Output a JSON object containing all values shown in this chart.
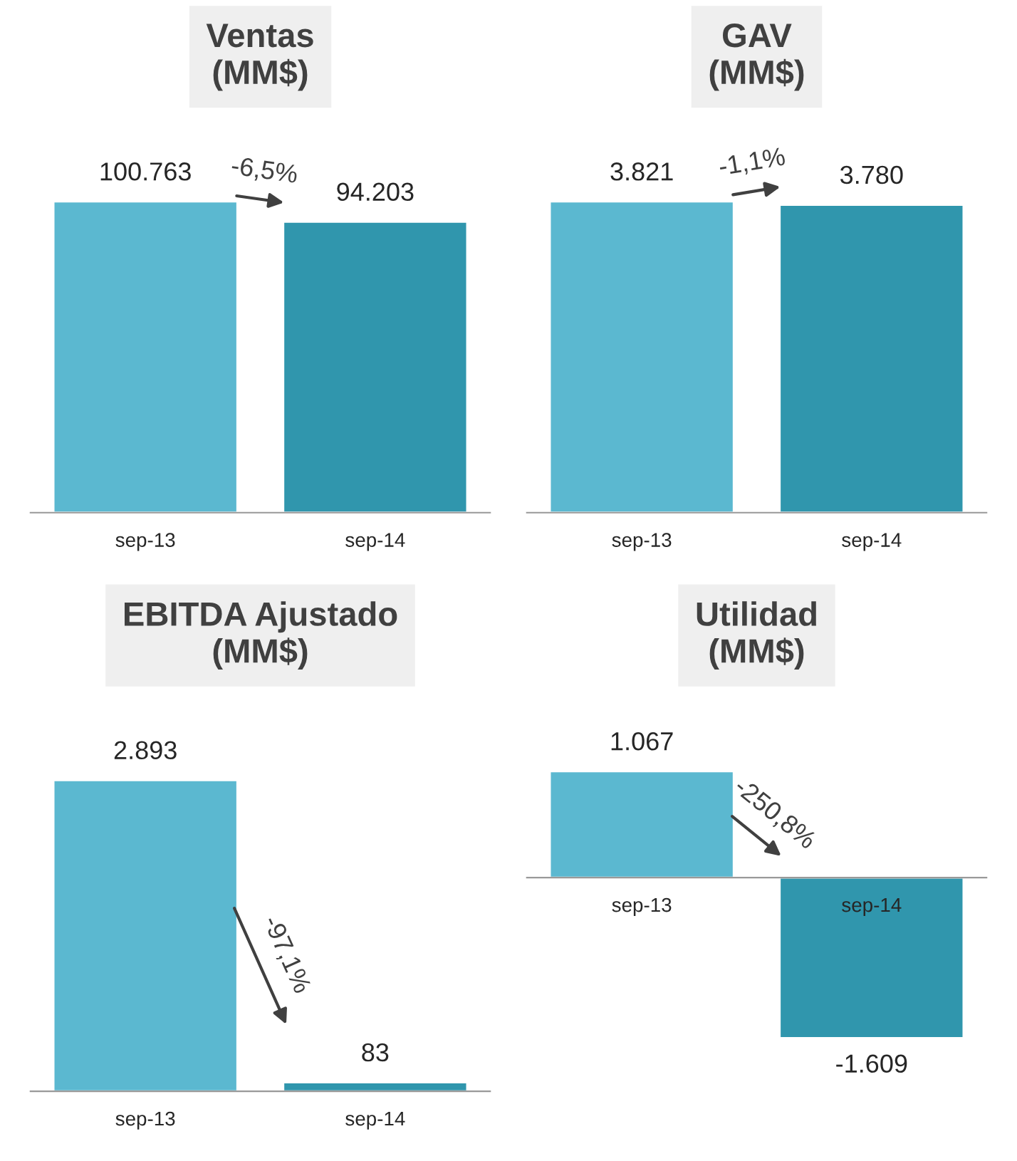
{
  "chart_data": [
    {
      "type": "bar",
      "title": "Ventas\n(MM$)",
      "categories": [
        "sep-13",
        "sep-14"
      ],
      "values": [
        100763,
        94203
      ],
      "value_labels": [
        "100.763",
        "94.203"
      ],
      "colors": [
        "#5bb8d0",
        "#3096ad"
      ],
      "annotations": [
        "-6,5%"
      ]
    },
    {
      "type": "bar",
      "title": "GAV\n(MM$)",
      "categories": [
        "sep-13",
        "sep-14"
      ],
      "values": [
        3821,
        3780
      ],
      "value_labels": [
        "3.821",
        "3.780"
      ],
      "colors": [
        "#5bb8d0",
        "#3096ad"
      ],
      "annotations": [
        "-1,1%"
      ]
    },
    {
      "type": "bar",
      "title": "EBITDA Ajustado\n(MM$)",
      "categories": [
        "sep-13",
        "sep-14"
      ],
      "values": [
        2893,
        83
      ],
      "value_labels": [
        "2.893",
        "83"
      ],
      "colors": [
        "#5bb8d0",
        "#3096ad"
      ],
      "annotations": [
        "-97,1%"
      ]
    },
    {
      "type": "bar",
      "title": "Utilidad\n(MM$)",
      "categories": [
        "sep-13",
        "sep-14"
      ],
      "values": [
        1067,
        -1609
      ],
      "value_labels": [
        "1.067",
        "-1.609"
      ],
      "colors": [
        "#5bb8d0",
        "#3096ad"
      ],
      "annotations": [
        "-250,8%"
      ]
    }
  ]
}
